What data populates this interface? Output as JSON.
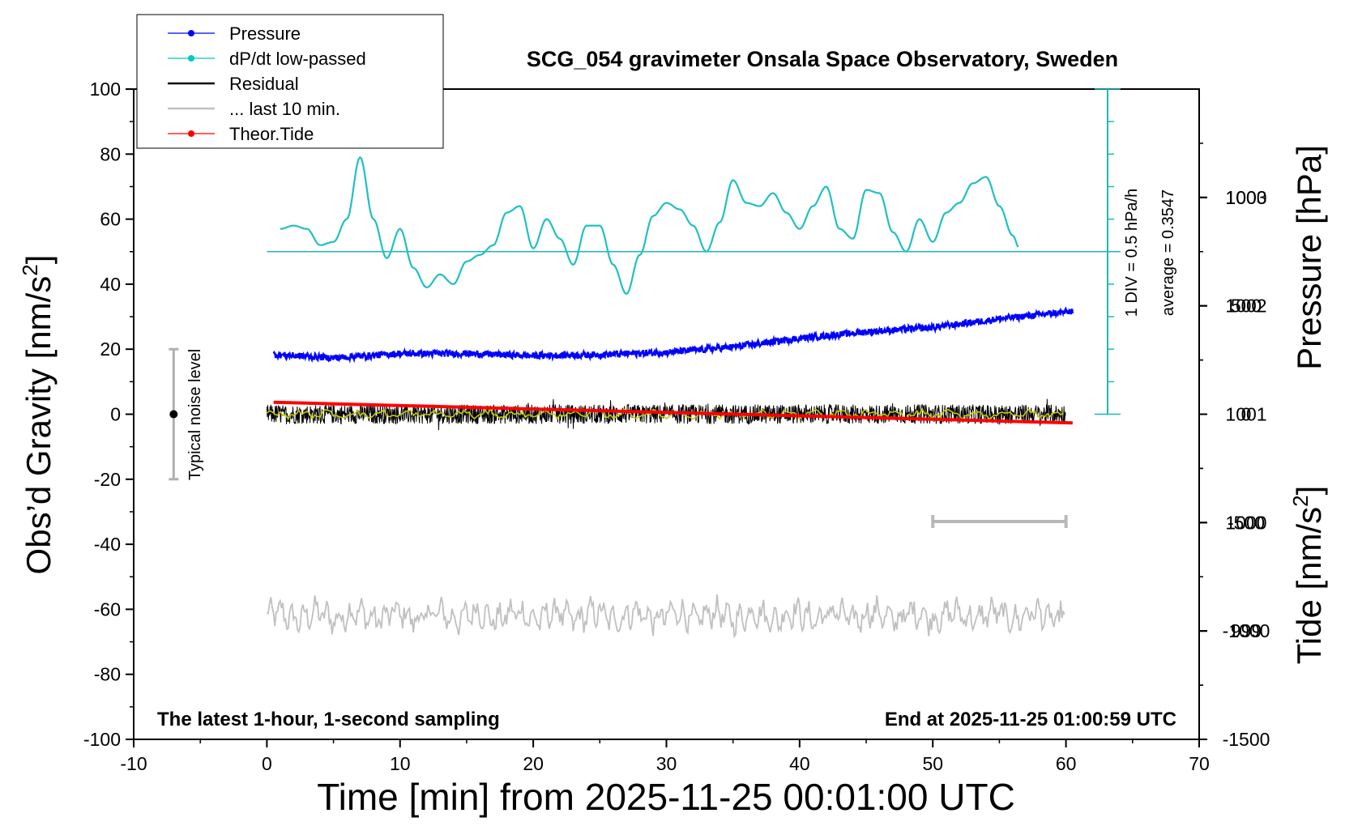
{
  "chart_data": {
    "type": "line",
    "title": "SCG_054 gravimeter Onsala Space Observatory, Sweden",
    "xlabel": "Time [min] from 2025-11-25 00:01:00 UTC",
    "ylabel_left_main": "Obs’d Gravity [nm/s",
    "ylabel_left_sup": "2",
    "ylabel_left_end": "]",
    "ylabel_pressure": "Pressure [hPa]",
    "ylabel_tide_main": "Tide [nm/s",
    "ylabel_tide_sup": "2",
    "ylabel_tide_end": "]",
    "xlim": [
      -10,
      70
    ],
    "ylim": [
      -100,
      100
    ],
    "pressure_lim": [
      998,
      1004
    ],
    "tide_lim": [
      -1500,
      1500
    ],
    "x_ticks": [
      "-10",
      "0",
      "10",
      "20",
      "30",
      "40",
      "50",
      "60",
      "70"
    ],
    "y_ticks": [
      "-100",
      "-80",
      "-60",
      "-40",
      "-20",
      "0",
      "20",
      "40",
      "60",
      "80",
      "100"
    ],
    "pressure_ticks": [
      "999",
      "1000",
      "1001",
      "1002",
      "1003"
    ],
    "tide_ticks": [
      "-1500",
      "-1000",
      "-500",
      "0",
      "500",
      "1000"
    ],
    "annotations": {
      "bottom_left": "The latest 1-hour, 1-second sampling",
      "bottom_right": "End at 2025-11-25 01:00:59 UTC",
      "noise": "Typical noise level",
      "div": "1 DIV = 0.5 hPa/h",
      "average": "average = 0.3547"
    },
    "legend": [
      {
        "label": "Pressure",
        "color": "#0000ff",
        "marker": "dot"
      },
      {
        "label": "dP/dt low-passed",
        "color": "#00c8c8",
        "marker": "dot"
      },
      {
        "label": "Residual",
        "color": "#000000",
        "marker": "none"
      },
      {
        "label": "... last 10 min.",
        "color": "#c0c0c0",
        "marker": "none"
      },
      {
        "label": "Theor.Tide",
        "color": "#ff0000",
        "marker": "dot"
      }
    ],
    "noise_bar": {
      "x": -7,
      "center": 0,
      "low": -20,
      "high": 20
    },
    "last10_bar": {
      "x_start": 50,
      "x_end": 60,
      "y": -33
    },
    "dpdt_baseline": 50,
    "series": [
      {
        "name": "Pressure",
        "color": "#0000ff",
        "axis": "pressure",
        "x": [
          0.5,
          5,
          10,
          15,
          20,
          25,
          30,
          35,
          40,
          45,
          50,
          55,
          60.5
        ],
        "y": [
          1001.55,
          1001.52,
          1001.56,
          1001.56,
          1001.54,
          1001.55,
          1001.57,
          1001.62,
          1001.7,
          1001.76,
          1001.8,
          1001.88,
          1001.95
        ]
      },
      {
        "name": "dP/dt low-passed",
        "color": "#00c8c8",
        "axis": "left",
        "x": [
          1,
          2,
          3,
          4,
          5,
          6,
          7,
          8,
          9,
          10,
          11,
          12,
          13,
          14,
          15,
          16,
          17,
          18,
          19,
          20,
          21,
          22,
          23,
          24,
          25,
          26,
          27,
          28,
          29,
          30,
          31,
          32,
          33,
          34,
          35,
          36,
          37,
          38,
          39,
          40,
          41,
          42,
          43,
          44,
          45,
          46,
          47,
          48,
          49,
          50,
          51,
          52,
          53,
          54,
          55,
          56,
          56.5
        ],
        "y": [
          57,
          58,
          57,
          52,
          53,
          60,
          79,
          60,
          48,
          57,
          45,
          39,
          43,
          40,
          47,
          49,
          52,
          62,
          64,
          51,
          60,
          54,
          46,
          58,
          58,
          46,
          37,
          49,
          61,
          65,
          63,
          58,
          50,
          59,
          72,
          65,
          64,
          68,
          62,
          57,
          64,
          70,
          57,
          54,
          69,
          68,
          56,
          50,
          60,
          53,
          62,
          65,
          71,
          73,
          64,
          55,
          51
        ]
      },
      {
        "name": "Residual",
        "color": "#000000",
        "axis": "left",
        "x": [
          0,
          60
        ],
        "y": [
          0,
          0
        ]
      },
      {
        "name": "Theor.Tide",
        "color": "#ff0000",
        "axis": "tide",
        "x": [
          0.5,
          60.5
        ],
        "y": [
          55,
          -40
        ]
      },
      {
        "name": "... last 10 min.",
        "color": "#c0c0c0",
        "axis": "left",
        "x": [
          0,
          60
        ],
        "y": [
          -62,
          -62
        ]
      }
    ]
  }
}
